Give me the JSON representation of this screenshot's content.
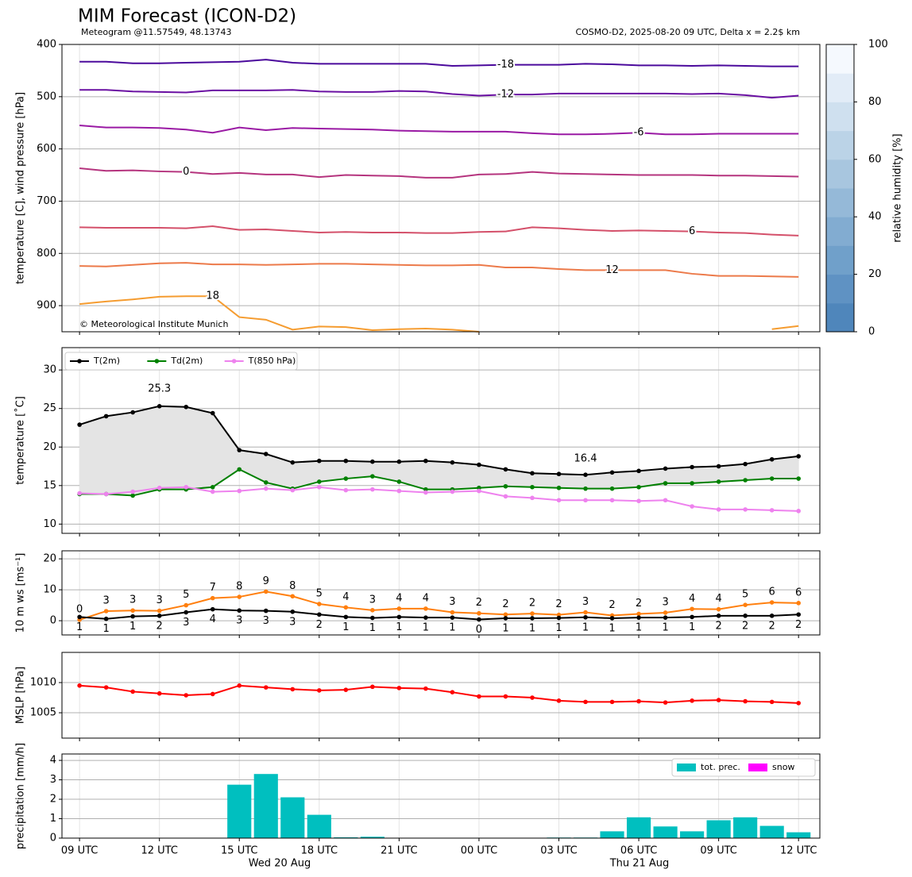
{
  "chart_data": [
    {
      "type": "contour",
      "title": "MIM Forecast (ICON-D2)",
      "subtitle": "Meteogram @11.57549, 48.13743",
      "info": "COSMO-D2, 2025-08-20 09 UTC, Delta x = 2.2$ km",
      "copyright": "© Meteorological Institute Munich",
      "ylabel": "temperature [C], wind pressure [hPa]",
      "ylim": [
        400,
        950
      ],
      "inverted": true,
      "yticks": [
        400,
        500,
        600,
        700,
        800,
        900
      ],
      "grid": true,
      "series": [
        {
          "name": "-18",
          "color": "#4b0a9c",
          "values": [
            433,
            433,
            436,
            436,
            435,
            434,
            433,
            429,
            435,
            437,
            437,
            437,
            437,
            437,
            441,
            440,
            439,
            439,
            439,
            437,
            438,
            440,
            440,
            441,
            440,
            441,
            442,
            442
          ]
        },
        {
          "name": "-12",
          "color": "#6a10a2",
          "values": [
            487,
            487,
            490,
            491,
            492,
            488,
            488,
            488,
            487,
            490,
            491,
            491,
            489,
            490,
            495,
            498,
            496,
            496,
            494,
            494,
            494,
            494,
            494,
            495,
            494,
            497,
            502,
            498
          ]
        },
        {
          "name": "-6",
          "color": "#9a1aa4",
          "values": [
            555,
            559,
            559,
            560,
            563,
            569,
            559,
            564,
            560,
            561,
            562,
            563,
            565,
            566,
            567,
            567,
            567,
            570,
            572,
            572,
            571,
            569,
            572,
            572,
            571,
            571,
            571,
            571
          ]
        },
        {
          "name": "0",
          "color": "#b5347e",
          "values": [
            637,
            642,
            641,
            643,
            644,
            648,
            646,
            649,
            649,
            654,
            650,
            651,
            652,
            655,
            655,
            649,
            648,
            644,
            647,
            648,
            649,
            650,
            650,
            650,
            651,
            651,
            652,
            653
          ]
        },
        {
          "name": "6",
          "color": "#d4506a",
          "values": [
            750,
            751,
            751,
            751,
            752,
            748,
            755,
            754,
            757,
            760,
            759,
            760,
            760,
            761,
            761,
            759,
            758,
            750,
            752,
            755,
            757,
            756,
            757,
            758,
            760,
            761,
            764,
            766
          ]
        },
        {
          "name": "12",
          "color": "#ec7a4a",
          "values": [
            824,
            825,
            822,
            819,
            818,
            821,
            821,
            822,
            821,
            820,
            820,
            821,
            822,
            823,
            823,
            822,
            827,
            827,
            830,
            832,
            832,
            832,
            832,
            839,
            843,
            843,
            844,
            845
          ]
        },
        {
          "name": "18",
          "color": "#f59c30",
          "values": [
            897,
            892,
            888,
            883,
            882,
            882,
            922,
            927,
            946,
            940,
            941,
            947,
            945,
            944,
            946,
            950,
            null,
            null,
            null,
            null,
            null,
            null,
            null,
            null,
            null,
            null,
            945,
            939
          ]
        }
      ],
      "colorbar": {
        "label": "relative humidity [%]",
        "ylim": [
          0,
          100
        ],
        "yticks": [
          0,
          20,
          40,
          60,
          80,
          100
        ],
        "colors": [
          "#4f86bb",
          "#5f92c3",
          "#70a0ca",
          "#82acd1",
          "#95b9d8",
          "#a8c6df",
          "#bbd3e7",
          "#cfe0ef",
          "#e2ecf7",
          "#f5f9fe"
        ]
      }
    },
    {
      "type": "line",
      "ylabel": "temperature [˚C]",
      "ylim": [
        8.8,
        32.9
      ],
      "yticks": [
        10,
        15,
        20,
        25,
        30
      ],
      "grid": true,
      "legend": "upper left",
      "fill_between": "#e4e4e4",
      "series": [
        {
          "name": "T(2m)",
          "color": "#000000",
          "values": [
            22.9,
            24.0,
            24.5,
            25.3,
            25.2,
            24.4,
            19.6,
            19.1,
            18.0,
            18.2,
            18.2,
            18.1,
            18.1,
            18.2,
            18.0,
            17.7,
            17.1,
            16.6,
            16.5,
            16.4,
            16.7,
            16.9,
            17.2,
            17.4,
            17.5,
            17.8,
            18.4,
            18.8
          ]
        },
        {
          "name": "Td(2m)",
          "color": "#008000",
          "values": [
            13.9,
            13.9,
            13.7,
            14.5,
            14.5,
            14.8,
            17.1,
            15.4,
            14.6,
            15.5,
            15.9,
            16.2,
            15.5,
            14.5,
            14.5,
            14.7,
            14.9,
            14.8,
            14.7,
            14.6,
            14.6,
            14.8,
            15.3,
            15.3,
            15.5,
            15.7,
            15.9,
            15.9
          ]
        },
        {
          "name": "T(850 hPa)",
          "color": "#ee82ee",
          "values": [
            14.0,
            13.9,
            14.2,
            14.7,
            14.8,
            14.2,
            14.3,
            14.6,
            14.4,
            14.8,
            14.4,
            14.5,
            14.3,
            14.1,
            14.2,
            14.3,
            13.6,
            13.4,
            13.1,
            13.1,
            13.1,
            13.0,
            13.1,
            12.3,
            11.9,
            11.9,
            11.8,
            11.7
          ]
        }
      ],
      "annotations": [
        {
          "text": "25.3",
          "color": "#ff0000"
        },
        {
          "text": "16.4",
          "color": "#0000ff"
        }
      ]
    },
    {
      "type": "line",
      "ylabel": "10 m ws [ms⁻¹]",
      "ylim": [
        -4.6,
        22.6
      ],
      "yticks": [
        0,
        10,
        20
      ],
      "grid": true,
      "series": [
        {
          "color": "#ff7f0e",
          "values": [
            0.3,
            3.1,
            3.3,
            3.2,
            5.0,
            7.3,
            7.7,
            9.4,
            7.9,
            5.4,
            4.3,
            3.4,
            3.9,
            3.9,
            2.7,
            2.4,
            2.0,
            2.3,
            1.9,
            2.7,
            1.7,
            2.2,
            2.6,
            3.8,
            3.7,
            5.1,
            5.9,
            5.7
          ],
          "value_labels": [
            "0",
            "3",
            "3",
            "3",
            "5",
            "7",
            "8",
            "9",
            "8",
            "5",
            "4",
            "3",
            "4",
            "4",
            "3",
            "2",
            "2",
            "2",
            "2",
            "3",
            "2",
            "2",
            "3",
            "4",
            "4",
            "5",
            "6",
            "6"
          ]
        },
        {
          "color": "#000000",
          "values": [
            1.2,
            0.6,
            1.4,
            1.6,
            2.7,
            3.7,
            3.3,
            3.2,
            2.9,
            2.0,
            1.2,
            0.9,
            1.2,
            1.0,
            1.0,
            0.4,
            0.8,
            0.8,
            0.9,
            1.1,
            0.8,
            1.0,
            1.0,
            1.2,
            1.6,
            1.6,
            1.6,
            2.0
          ],
          "value_labels": [
            "1",
            "1",
            "1",
            "2",
            "3",
            "4",
            "3",
            "3",
            "3",
            "2",
            "1",
            "1",
            "1",
            "1",
            "1",
            "0",
            "1",
            "1",
            "1",
            "1",
            "1",
            "1",
            "1",
            "1",
            "2",
            "2",
            "2",
            "2"
          ]
        }
      ]
    },
    {
      "type": "line",
      "ylabel": "MSLP [hPa]",
      "ylim": [
        1000.8,
        1015.0
      ],
      "yticks": [
        1005,
        1010
      ],
      "grid": true,
      "series": [
        {
          "color": "#ff0000",
          "values": [
            1009.5,
            1009.2,
            1008.5,
            1008.2,
            1007.9,
            1008.1,
            1009.5,
            1009.2,
            1008.9,
            1008.7,
            1008.8,
            1009.3,
            1009.1,
            1009.0,
            1008.4,
            1007.7,
            1007.7,
            1007.5,
            1007.0,
            1006.8,
            1006.8,
            1006.9,
            1006.7,
            1007.0,
            1007.1,
            1006.9,
            1006.8,
            1006.6
          ]
        }
      ]
    },
    {
      "type": "bar",
      "ylabel": "precipitation [mm/h]",
      "ylim": [
        0,
        4.33
      ],
      "yticks": [
        0,
        1,
        2,
        3,
        4
      ],
      "grid": true,
      "legend": "upper right",
      "x": [
        0,
        1,
        2,
        3,
        4,
        5,
        6,
        7,
        8,
        9,
        10,
        11,
        12,
        13,
        14,
        15,
        16,
        17,
        18,
        19,
        20,
        21,
        22,
        23,
        24,
        25,
        26,
        27
      ],
      "xlim": [
        -0.66,
        27.8
      ],
      "xticks": [
        {
          "value": 0,
          "label": "09 UTC"
        },
        {
          "value": 3,
          "label": "12 UTC"
        },
        {
          "value": 6,
          "label": "15 UTC"
        },
        {
          "value": 9,
          "label": "18 UTC"
        },
        {
          "value": 12,
          "label": "21 UTC"
        },
        {
          "value": 15,
          "label": "00 UTC"
        },
        {
          "value": 18,
          "label": "03 UTC"
        },
        {
          "value": 21,
          "label": "06 UTC"
        },
        {
          "value": 24,
          "label": "09 UTC"
        },
        {
          "value": 27,
          "label": "12 UTC"
        }
      ],
      "date_labels": [
        "Wed 20 Aug",
        "Thu 21 Aug"
      ],
      "series": [
        {
          "name": "tot. prec.",
          "color": "#00bfbf",
          "values": [
            0,
            0,
            0,
            0,
            0,
            0,
            2.75,
            3.3,
            2.1,
            1.2,
            0.04,
            0.07,
            0,
            0,
            0,
            0,
            0,
            0,
            0.03,
            0.03,
            0.35,
            1.07,
            0.6,
            0.35,
            0.92,
            1.07,
            0.63,
            0.3
          ]
        },
        {
          "name": "snow",
          "color": "#ff00ff",
          "values": [
            0,
            0,
            0,
            0,
            0,
            0,
            0,
            0,
            0,
            0,
            0,
            0,
            0,
            0,
            0,
            0,
            0,
            0,
            0,
            0,
            0,
            0,
            0,
            0,
            0,
            0,
            0,
            0
          ]
        }
      ]
    }
  ]
}
